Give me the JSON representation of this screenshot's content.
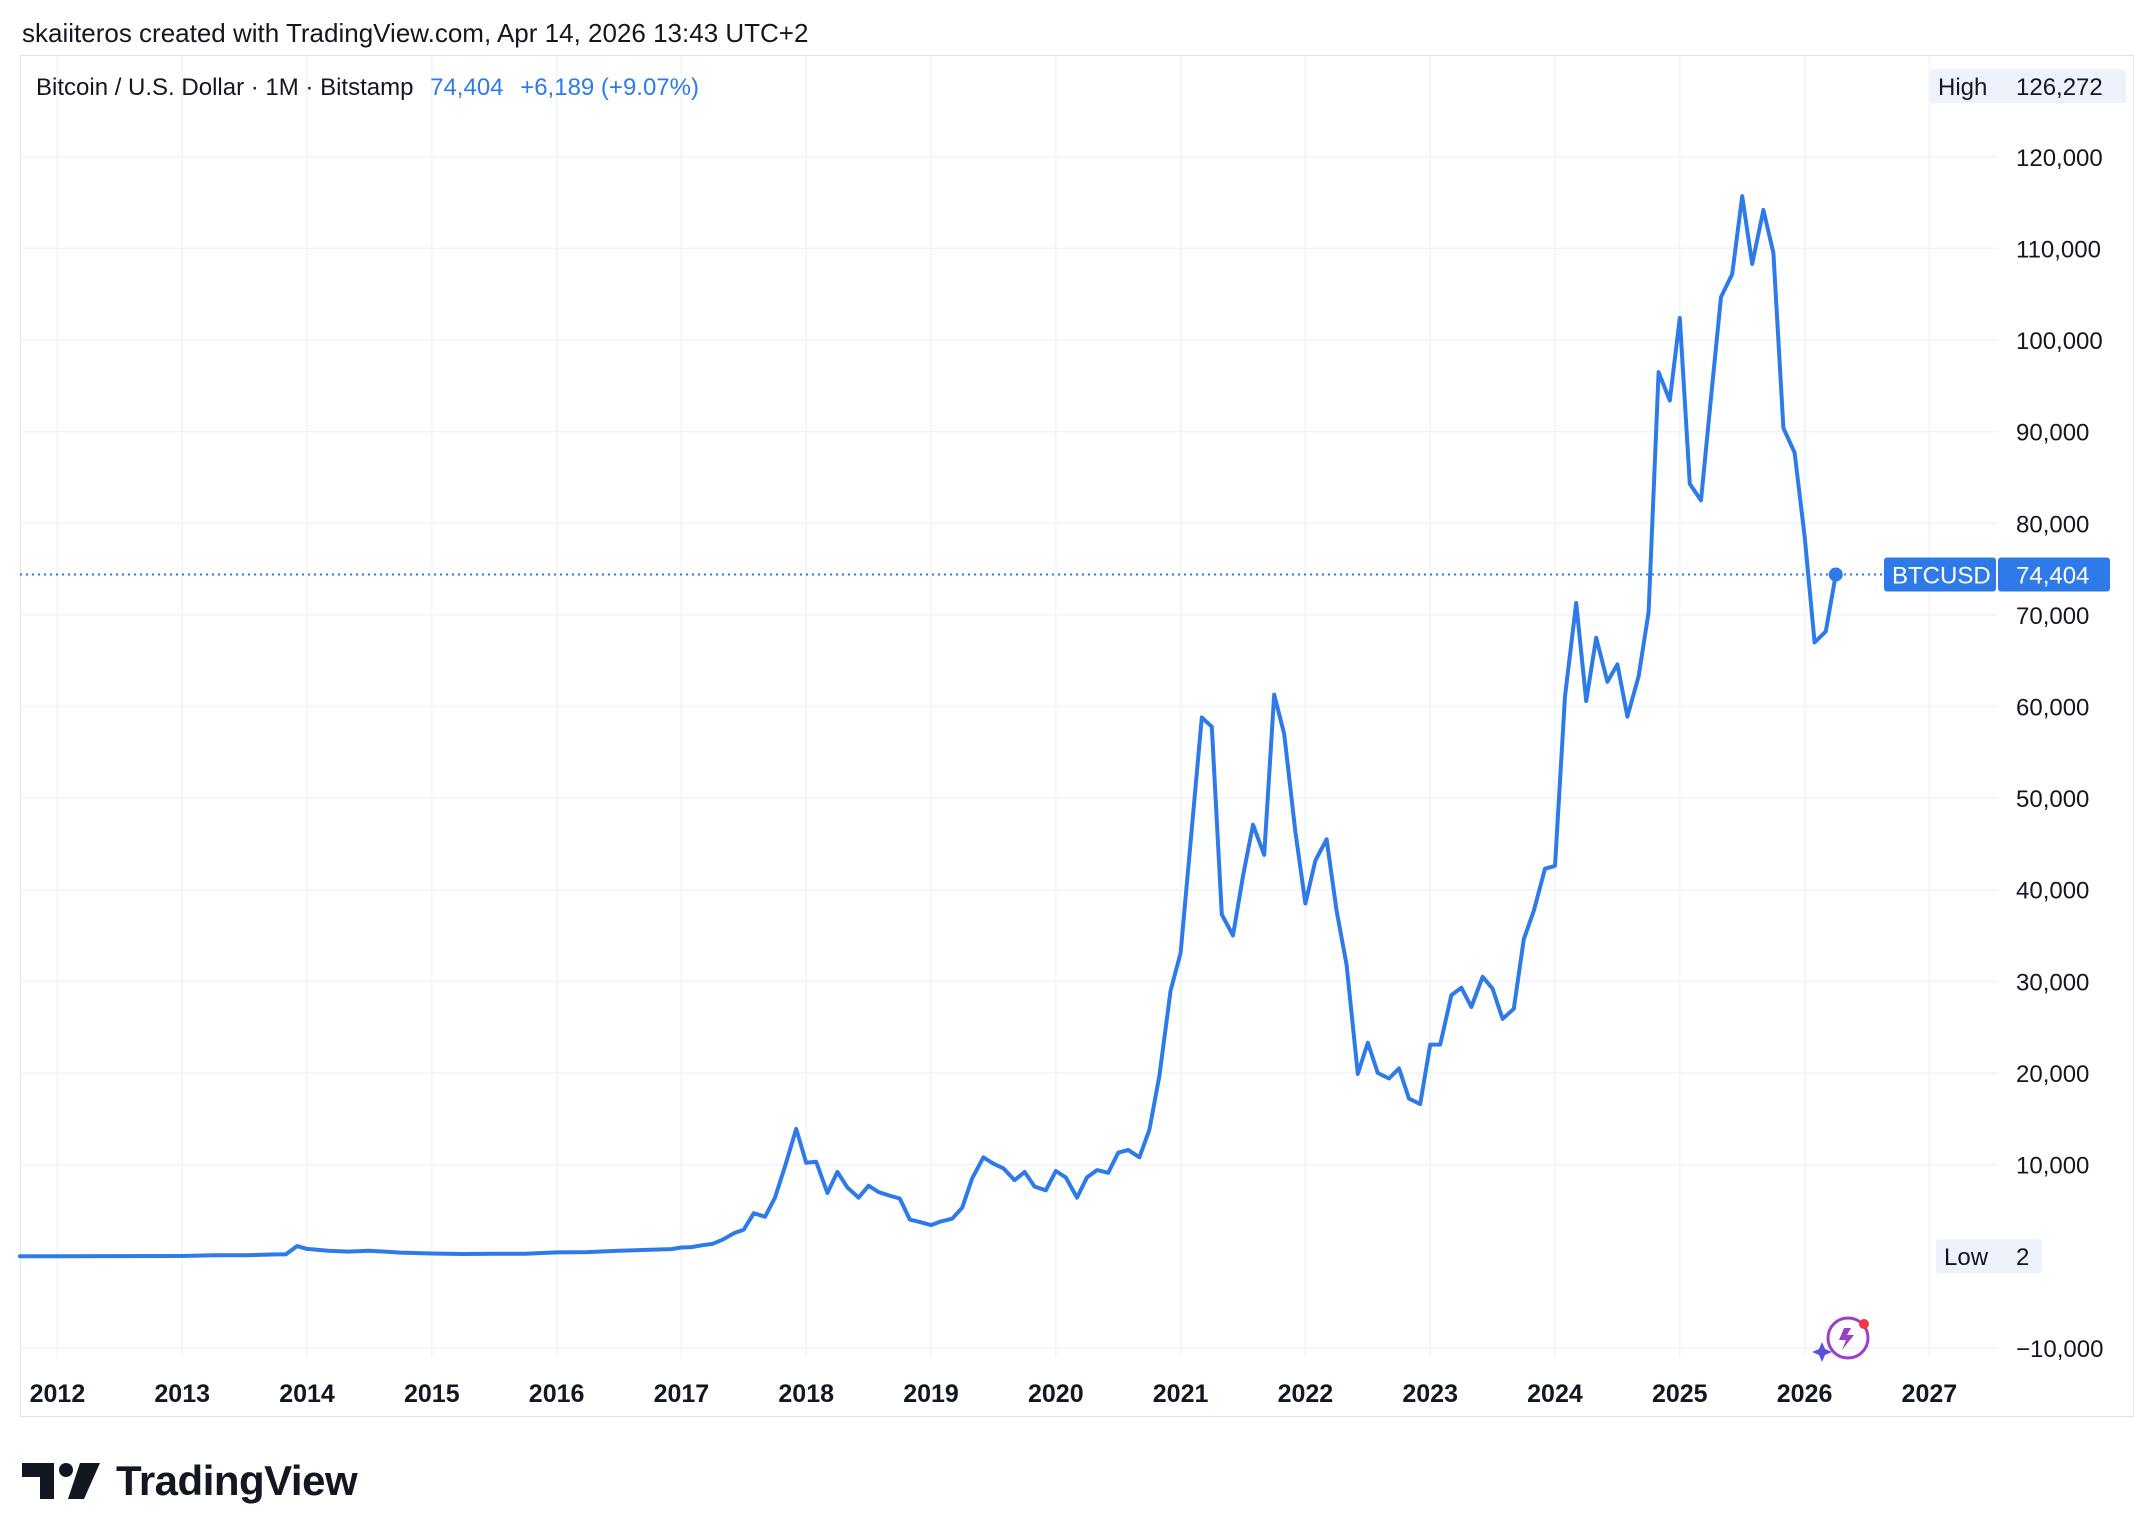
{
  "header": {
    "attribution": "skaiiteros created with TradingView.com, Apr 14, 2026 13:43 UTC+2"
  },
  "legend": {
    "symbol": "Bitcoin / U.S. Dollar · 1M · Bitstamp",
    "last": "74,404",
    "change": "+6,189 (+9.07%)"
  },
  "badges": {
    "high_label": "High",
    "high_value": "126,272",
    "low_label": "Low",
    "low_value": "2",
    "ticker_label": "BTCUSD",
    "ticker_value": "74,404"
  },
  "branding": {
    "name": "TradingView"
  },
  "colors": {
    "line": "#2e7ae9",
    "grid": "#f0f3fa",
    "axis_text": "#131722",
    "badge_bg": "#eef2fa"
  },
  "chart_data": {
    "type": "line",
    "title": "Bitcoin / U.S. Dollar · 1M · Bitstamp",
    "xlabel": "",
    "ylabel": "",
    "x_ticks": [
      "2012",
      "2013",
      "2014",
      "2015",
      "2016",
      "2017",
      "2018",
      "2019",
      "2020",
      "2021",
      "2022",
      "2023",
      "2024",
      "2025",
      "2026",
      "2027"
    ],
    "y_ticks": [
      -10000,
      10000,
      20000,
      30000,
      40000,
      50000,
      60000,
      70000,
      80000,
      90000,
      100000,
      110000,
      120000
    ],
    "ylim": [
      -11000,
      131000
    ],
    "xlim": [
      2011.7,
      2027.55
    ],
    "grid": true,
    "legend": "top-left",
    "series": [
      {
        "name": "BTCUSD",
        "x": [
          2011.7,
          2012.0,
          2012.5,
          2013.0,
          2013.25,
          2013.5,
          2013.75,
          2013.83,
          2013.92,
          2014.0,
          2014.17,
          2014.33,
          2014.5,
          2014.75,
          2015.0,
          2015.25,
          2015.5,
          2015.75,
          2016.0,
          2016.25,
          2016.5,
          2016.75,
          2016.92,
          2017.0,
          2017.08,
          2017.17,
          2017.25,
          2017.33,
          2017.42,
          2017.5,
          2017.58,
          2017.67,
          2017.75,
          2017.83,
          2017.92,
          2018.0,
          2018.08,
          2018.17,
          2018.25,
          2018.33,
          2018.42,
          2018.5,
          2018.58,
          2018.67,
          2018.75,
          2018.83,
          2018.92,
          2019.0,
          2019.08,
          2019.17,
          2019.25,
          2019.33,
          2019.42,
          2019.5,
          2019.58,
          2019.67,
          2019.75,
          2019.83,
          2019.92,
          2020.0,
          2020.08,
          2020.17,
          2020.25,
          2020.33,
          2020.42,
          2020.5,
          2020.58,
          2020.67,
          2020.75,
          2020.83,
          2020.92,
          2021.0,
          2021.08,
          2021.17,
          2021.25,
          2021.33,
          2021.42,
          2021.5,
          2021.58,
          2021.67,
          2021.75,
          2021.83,
          2021.92,
          2022.0,
          2022.08,
          2022.17,
          2022.25,
          2022.33,
          2022.42,
          2022.5,
          2022.58,
          2022.67,
          2022.75,
          2022.83,
          2022.92,
          2023.0,
          2023.08,
          2023.17,
          2023.25,
          2023.33,
          2023.42,
          2023.5,
          2023.58,
          2023.67,
          2023.75,
          2023.83,
          2023.92,
          2024.0,
          2024.08,
          2024.17,
          2024.25,
          2024.33,
          2024.42,
          2024.5,
          2024.58,
          2024.67,
          2024.75,
          2024.83,
          2024.92,
          2025.0,
          2025.08,
          2025.17,
          2025.25,
          2025.33,
          2025.42,
          2025.5,
          2025.58,
          2025.67,
          2025.75,
          2025.83,
          2025.92,
          2026.0,
          2026.08,
          2026.17,
          2026.25
        ],
        "y": [
          5,
          5,
          10,
          20,
          100,
          100,
          200,
          200,
          1100,
          800,
          600,
          500,
          600,
          400,
          300,
          240,
          280,
          280,
          420,
          450,
          600,
          700,
          780,
          950,
          1000,
          1200,
          1350,
          1800,
          2500,
          2900,
          4700,
          4300,
          6400,
          9800,
          13900,
          10200,
          10300,
          6900,
          9200,
          7500,
          6400,
          7700,
          7000,
          6600,
          6300,
          4000,
          3700,
          3400,
          3800,
          4100,
          5300,
          8500,
          10800,
          10100,
          9600,
          8300,
          9200,
          7600,
          7200,
          9300,
          8600,
          6400,
          8600,
          9400,
          9100,
          11300,
          11600,
          10800,
          13800,
          19700,
          29000,
          33100,
          45200,
          58800,
          57800,
          37300,
          35000,
          41500,
          47100,
          43800,
          61300,
          57000,
          46300,
          38500,
          43200,
          45500,
          37700,
          31800,
          19900,
          23300,
          20000,
          19400,
          20500,
          17200,
          16600,
          23100,
          23100,
          28500,
          29300,
          27200,
          30500,
          29200,
          25900,
          27000,
          34600,
          37700,
          42300,
          42600,
          61100,
          71300,
          60600,
          67500,
          62700,
          64600,
          58900,
          63300,
          70300,
          96500,
          93400,
          102400,
          84300,
          82500,
          93700,
          104700,
          107200,
          115700,
          108300,
          114200,
          109500,
          90400,
          87700,
          78600,
          67000,
          68200,
          74404
        ]
      }
    ]
  }
}
